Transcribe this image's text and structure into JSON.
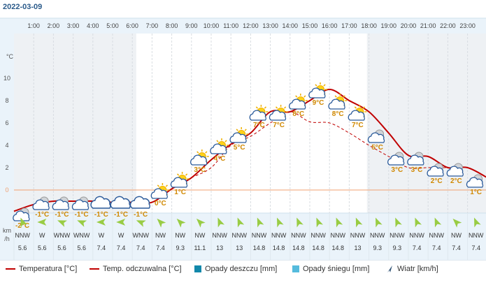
{
  "date": "2022-03-09",
  "wind_unit_label": [
    "km",
    "/h"
  ],
  "legend": {
    "temperature": "Temperatura [°C]",
    "feels_like": "Temp. odczuwalna [°C]",
    "rain": "Opady deszczu [mm]",
    "snow": "Opady śniegu [mm]",
    "wind": "Wiatr [km/h]"
  },
  "colors": {
    "temperature": "#c00000",
    "feels_like": "#c00000",
    "rain": "#1188aa",
    "snow": "#55bbdd",
    "zero_line": "#f0a070",
    "temp_label": "#d08800",
    "wind_arrow": "#99cc44",
    "header_bg": "#eaf3fa",
    "night_bg": "#eef1f4"
  },
  "chart_data": {
    "type": "line",
    "hours": [
      "1:00",
      "2:00",
      "3:00",
      "4:00",
      "5:00",
      "6:00",
      "7:00",
      "8:00",
      "9:00",
      "10:00",
      "11:00",
      "12:00",
      "13:00",
      "14:00",
      "15:00",
      "16:00",
      "17:00",
      "18:00",
      "19:00",
      "20:00",
      "21:00",
      "22:00",
      "23:00"
    ],
    "ylabel": "°C",
    "yticks": [
      0,
      2,
      4,
      6,
      8,
      10
    ],
    "temp_labels": [
      "-2°C",
      "-1°C",
      "-1°C",
      "-1°C",
      "-1°C",
      "-1°C",
      "-1°C",
      "0°C",
      "1°C",
      "3°C",
      "4°C",
      "5°C",
      "7°C",
      "7°C",
      "8°C",
      "9°C",
      "8°C",
      "7°C",
      "5°C",
      "3°C",
      "3°C",
      "2°C",
      "2°C",
      "1°C"
    ],
    "temp_label_values": [
      -2,
      -1,
      -1,
      -1,
      -1,
      -1,
      -1,
      0,
      1,
      3,
      4,
      5,
      7,
      7,
      8,
      9,
      8,
      7,
      5,
      3,
      3,
      2,
      2,
      1
    ],
    "icons": [
      "night-partly-cloudy",
      "night-partly-cloudy",
      "night-partly-cloudy",
      "night-partly-cloudy",
      "cloudy",
      "cloudy",
      "cloudy",
      "partly-sunny",
      "partly-sunny",
      "partly-sunny",
      "partly-sunny",
      "partly-sunny",
      "partly-sunny",
      "partly-sunny",
      "partly-sunny",
      "partly-sunny",
      "partly-sunny",
      "partly-sunny",
      "night-partly-cloudy",
      "night-partly-cloudy",
      "night-partly-cloudy",
      "night-partly-cloudy",
      "night-partly-cloudy",
      "night-partly-cloudy"
    ],
    "series": [
      {
        "name": "Temperatura [°C]",
        "x": [
          0,
          1,
          2,
          3,
          4,
          5,
          6,
          7,
          8,
          9,
          10,
          11,
          12,
          13,
          14,
          15,
          16,
          17,
          18,
          19,
          20,
          21,
          22,
          23,
          24
        ],
        "values": [
          -1.9,
          -1.3,
          -1.0,
          -1.0,
          -1.0,
          -1.1,
          -1.1,
          -1.1,
          0.1,
          1.1,
          2.7,
          4.1,
          5.1,
          7.0,
          7.0,
          8.0,
          9.0,
          8.0,
          7.0,
          5.1,
          3.1,
          3.0,
          2.0,
          2.0,
          1.1
        ]
      },
      {
        "name": "Temp. odczuwalna [°C]",
        "x": [
          0,
          1,
          2,
          3,
          4,
          5,
          6,
          7,
          8,
          9,
          10,
          11,
          12,
          13,
          14,
          15,
          16,
          17,
          18,
          19,
          20,
          21,
          22,
          23,
          24
        ],
        "values": [
          -1.9,
          -1.3,
          -1.0,
          -1.0,
          -1.0,
          -1.1,
          -1.1,
          -1.1,
          0.1,
          1.1,
          2.0,
          4.0,
          4.8,
          6.0,
          7.0,
          6.1,
          6.0,
          5.1,
          4.0,
          3.0,
          2.0,
          2.0,
          2.0,
          2.0,
          1.1
        ]
      }
    ],
    "wind": {
      "directions": [
        "NNW",
        "W",
        "WNW",
        "WNW",
        "W",
        "W",
        "WNW",
        "NW",
        "NW",
        "NW",
        "NNW",
        "NNW",
        "NNW",
        "NNW",
        "NNW",
        "NNW",
        "NNW",
        "NNW",
        "NNW",
        "NNW",
        "NNW",
        "NNW",
        "NW",
        "NNW"
      ],
      "speeds": [
        "5.6",
        "5.6",
        "5.6",
        "5.6",
        "7.4",
        "7.4",
        "7.4",
        "7.4",
        "9.3",
        "11.1",
        "13",
        "13",
        "14.8",
        "14.8",
        "14.8",
        "14.8",
        "14.8",
        "13",
        "9.3",
        "9.3",
        "7.4",
        "7.4",
        "7.4",
        "7.4"
      ]
    }
  }
}
